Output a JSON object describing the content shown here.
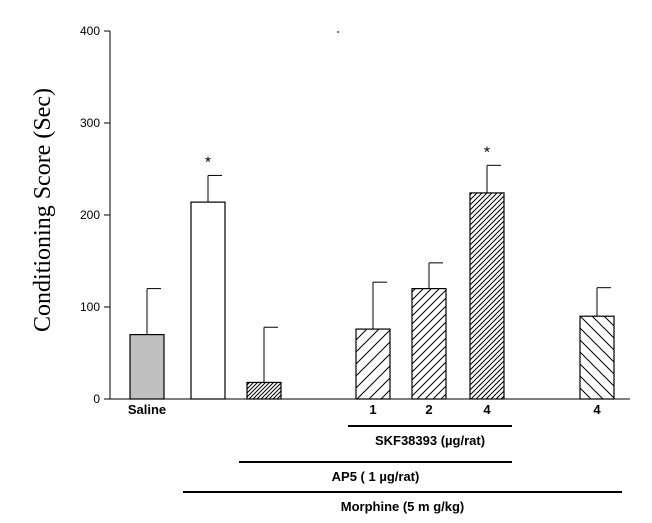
{
  "chart_data": {
    "type": "bar",
    "ylabel": "Conditioning Score (Sec)",
    "ylim": [
      0,
      400
    ],
    "yticks": [
      0,
      100,
      200,
      300,
      400
    ],
    "grid": false,
    "legend": "none",
    "bars": [
      {
        "label": "Saline",
        "value": 70,
        "error": 50,
        "pattern": "solid-gray",
        "star": ""
      },
      {
        "label": "",
        "value": 214,
        "error": 29,
        "pattern": "open",
        "star": "*"
      },
      {
        "label": "",
        "value": 18,
        "error": 60,
        "pattern": "dense-diagonal",
        "star": ""
      },
      {
        "label": "1",
        "value": 76,
        "error": 51,
        "pattern": "diagonal-wide",
        "star": ""
      },
      {
        "label": "2",
        "value": 120,
        "error": 28,
        "pattern": "diagonal-medium",
        "star": ""
      },
      {
        "label": "4",
        "value": 224,
        "error": 30,
        "pattern": "diagonal-dense",
        "star": "*"
      },
      {
        "label": "4",
        "value": 90,
        "error": 31,
        "pattern": "back-diagonal",
        "star": ""
      }
    ],
    "groups": [
      {
        "label": "SKF38393 (µg/rat)",
        "from": 3,
        "to": 5
      },
      {
        "label": "AP5 ( 1 µg/rat)",
        "from": 2,
        "to": 5
      },
      {
        "label": "Morphine (5 m g/kg)",
        "from": 1,
        "to": 6
      }
    ],
    "colors": {
      "solid_gray": "#c0c0c0",
      "stroke": "#000000"
    }
  }
}
